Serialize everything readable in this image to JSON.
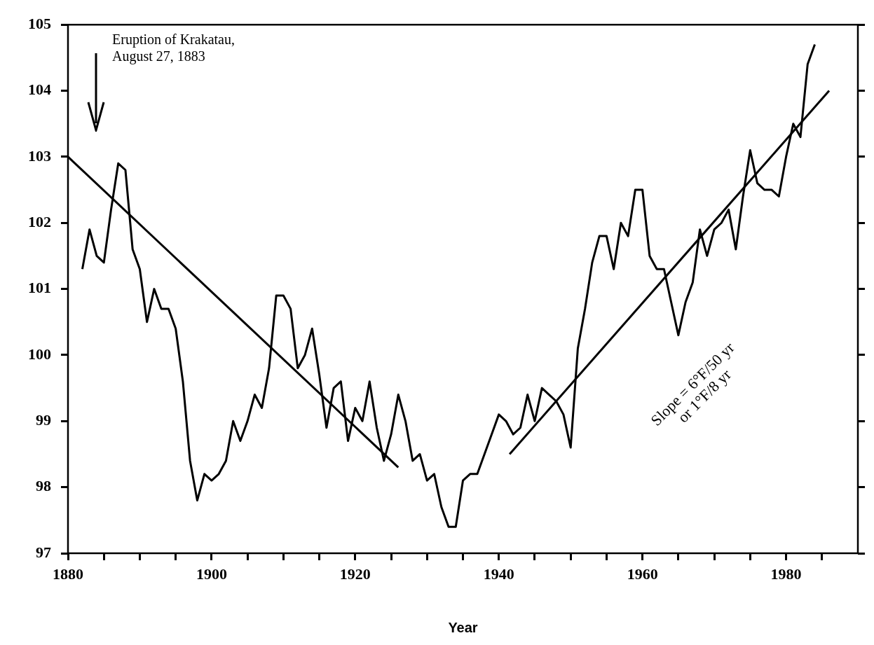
{
  "chart_data": {
    "type": "line",
    "xlabel": "Year",
    "xlim": [
      1880,
      1990
    ],
    "xticks": [
      1880,
      {
        "value": 1885,
        "label": null
      },
      {
        "value": 1890,
        "label": null
      },
      {
        "value": 1895,
        "label": null
      },
      1900,
      {
        "value": 1905,
        "label": null
      },
      {
        "value": 1910,
        "label": null
      },
      {
        "value": 1915,
        "label": null
      },
      1920,
      {
        "value": 1925,
        "label": null
      },
      {
        "value": 1930,
        "label": null
      },
      {
        "value": 1935,
        "label": null
      },
      1940,
      {
        "value": 1945,
        "label": null
      },
      {
        "value": 1950,
        "label": null
      },
      {
        "value": 1955,
        "label": null
      },
      1960,
      {
        "value": 1965,
        "label": null
      },
      {
        "value": 1970,
        "label": null
      },
      {
        "value": 1975,
        "label": null
      },
      1980,
      {
        "value": 1985,
        "label": null
      }
    ],
    "ylim": [
      97,
      105
    ],
    "yticks": [
      97,
      98,
      99,
      100,
      101,
      102,
      103,
      104,
      105
    ],
    "grid": false,
    "legend": false,
    "marker": "none",
    "line_style": "solid",
    "series": [
      {
        "color": "#000000",
        "x": [
          1882,
          1883,
          1884,
          1885,
          1886,
          1887,
          1888,
          1889,
          1890,
          1891,
          1892,
          1893,
          1894,
          1895,
          1896,
          1897,
          1898,
          1899,
          1900,
          1901,
          1902,
          1903,
          1904,
          1905,
          1906,
          1907,
          1908,
          1909,
          1910,
          1911,
          1912,
          1913,
          1914,
          1915,
          1916,
          1917,
          1918,
          1919,
          1920,
          1921,
          1922,
          1923,
          1924,
          1925,
          1926,
          1927,
          1928,
          1929,
          1930,
          1931,
          1932,
          1933,
          1934,
          1935,
          1936,
          1937,
          1938,
          1939,
          1940,
          1941,
          1942,
          1943,
          1944,
          1945,
          1946,
          1947,
          1948,
          1949,
          1950,
          1951,
          1952,
          1953,
          1954,
          1955,
          1956,
          1957,
          1958,
          1959,
          1960,
          1961,
          1962,
          1963,
          1964,
          1965,
          1966,
          1967,
          1968,
          1969,
          1970,
          1971,
          1972,
          1973,
          1974,
          1975,
          1976,
          1977,
          1978,
          1979,
          1980,
          1981,
          1982,
          1983,
          1984
        ],
        "values": [
          101.3,
          101.9,
          101.5,
          101.4,
          102.2,
          102.9,
          102.8,
          101.6,
          101.3,
          100.5,
          101.0,
          100.7,
          100.7,
          100.4,
          99.6,
          98.4,
          97.8,
          98.2,
          98.1,
          98.2,
          98.4,
          99.0,
          98.7,
          99.0,
          99.4,
          99.2,
          99.8,
          100.9,
          100.9,
          100.7,
          99.8,
          100.0,
          100.4,
          99.7,
          98.9,
          99.5,
          99.6,
          98.7,
          99.2,
          99.0,
          99.6,
          98.9,
          98.4,
          98.8,
          99.4,
          99.0,
          98.4,
          98.5,
          98.1,
          98.2,
          97.7,
          97.4,
          97.4,
          98.1,
          98.2,
          98.2,
          98.5,
          98.8,
          99.1,
          99.0,
          98.8,
          98.9,
          99.4,
          99.0,
          99.5,
          99.4,
          99.3,
          99.1,
          98.6,
          100.1,
          100.7,
          101.4,
          101.8,
          101.8,
          101.3,
          102.0,
          101.8,
          102.5,
          102.5,
          101.5,
          101.3,
          101.3,
          100.8,
          100.3,
          100.8,
          101.1,
          101.9,
          101.5,
          101.9,
          102.0,
          102.2,
          101.6,
          102.4,
          103.1,
          102.6,
          102.5,
          102.5,
          102.4,
          103.0,
          103.5,
          103.3,
          104.4,
          104.7
        ]
      },
      {
        "type": "line",
        "color": "#000000",
        "x": [
          1880,
          1926
        ],
        "values": [
          103.0,
          98.3
        ]
      },
      {
        "type": "line",
        "color": "#000000",
        "x": [
          1941.5,
          1986
        ],
        "values": [
          98.5,
          104.0
        ]
      }
    ],
    "annotations": [
      "Eruption of Krakatau,\nAugust 27, 1883",
      "Slope = 6°F/50 yr\nor 1°F/8 yr"
    ]
  }
}
